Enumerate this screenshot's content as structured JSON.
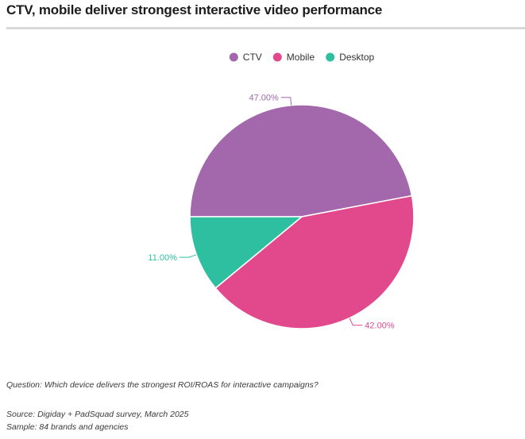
{
  "header": {
    "title": "CTV, mobile deliver strongest interactive video performance"
  },
  "chart_data": {
    "type": "pie",
    "title": "CTV, mobile deliver strongest interactive video performance",
    "legend_position": "top",
    "categories": [
      "CTV",
      "Mobile",
      "Desktop"
    ],
    "values": [
      47.0,
      42.0,
      11.0
    ],
    "labels": [
      "47.00%",
      "42.00%",
      "11.00%"
    ],
    "colors": [
      "#a268ab",
      "#e2498d",
      "#2dbfa0"
    ]
  },
  "footer": {
    "question": "Question: Which device delivers the strongest ROI/ROAS for interactive campaigns?",
    "source": "Source: Digiday + PadSquad survey, March 2025",
    "sample": "Sample: 84 brands and agencies"
  }
}
